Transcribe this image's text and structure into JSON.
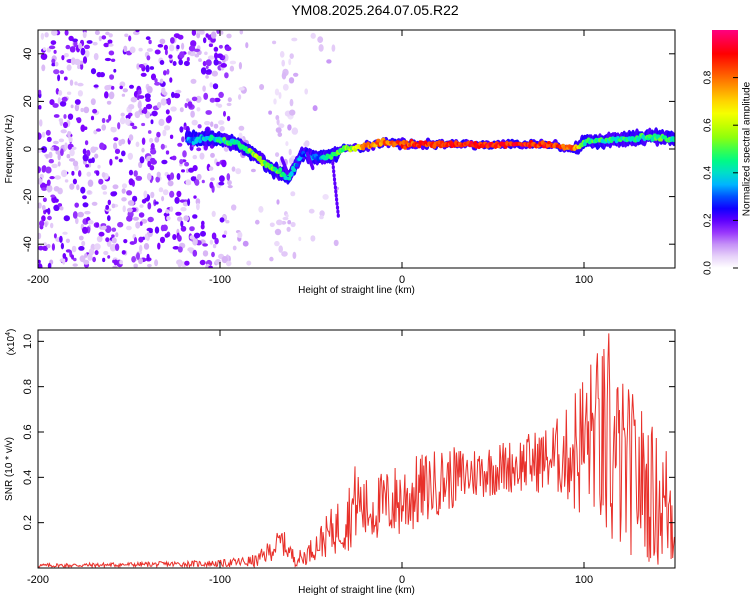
{
  "title": "YM08.2025.264.07.05.R22",
  "chart_data": [
    {
      "type": "heatmap",
      "title": "YM08.2025.264.07.05.R22",
      "xlabel": "Height of straight line (km)",
      "ylabel": "Frequency (Hz)",
      "xlim": [
        -200,
        150
      ],
      "ylim": [
        -50,
        50
      ],
      "xticks": [
        -200,
        -100,
        0,
        100
      ],
      "xtick_labels": [
        "-200",
        "-100",
        "0",
        "100"
      ],
      "yticks": [
        -40,
        -20,
        0,
        20,
        40
      ],
      "ytick_labels": [
        "-40",
        "-20",
        "0",
        "20",
        "40"
      ],
      "colorbar": {
        "label": "Normalized spectral amplitude",
        "range": [
          0,
          1
        ],
        "ticks": [
          0.0,
          0.2,
          0.4,
          0.6,
          0.8
        ],
        "tick_labels": [
          "0.0",
          "0.2",
          "0.4",
          "0.6",
          "0.8"
        ],
        "colors": [
          "#ffffff",
          "#c7a0f0",
          "#7d00ff",
          "#0000ff",
          "#00c8ff",
          "#00ff7a",
          "#a0ff00",
          "#ffff00",
          "#ff8000",
          "#ff0000",
          "#ff0080"
        ]
      },
      "ridge": {
        "description_points_x": [
          -115,
          -100,
          -90,
          -80,
          -72,
          -62,
          -55,
          -45,
          -38,
          -33,
          -20,
          -10,
          0,
          20,
          40,
          60,
          80,
          95,
          100,
          120,
          140,
          150
        ],
        "description_points_y": [
          4,
          4,
          2,
          -3,
          -8,
          -12,
          -2,
          -4,
          -3,
          0,
          1,
          3,
          2,
          2,
          2,
          2,
          2,
          0,
          3,
          4,
          5,
          4
        ],
        "peak_amplitude": [
          0.3,
          0.45,
          0.5,
          0.6,
          0.55,
          0.4,
          0.3,
          0.35,
          0.5,
          0.5,
          0.85,
          0.9,
          0.95,
          1.0,
          1.0,
          1.0,
          1.0,
          0.9,
          0.5,
          0.45,
          0.5,
          0.45
        ]
      }
    },
    {
      "type": "line",
      "xlabel": "Height of straight line (km)",
      "ylabel": "SNR (10 * v/v)",
      "scale_label": "(x10",
      "scale_exponent": "4",
      "scale_close": ")",
      "xlim": [
        -200,
        150
      ],
      "ylim": [
        0,
        1.05
      ],
      "xticks": [
        -200,
        -100,
        0,
        100
      ],
      "xtick_labels": [
        "-200",
        "-100",
        "0",
        "100"
      ],
      "yticks": [
        0.2,
        0.4,
        0.6,
        0.8,
        1.0
      ],
      "ytick_labels": [
        "0.2",
        "0.4",
        "0.6",
        "0.8",
        "1.0"
      ],
      "series": [
        {
          "name": "SNR",
          "color": "#e8302a",
          "envelope_x": [
            -200,
            -150,
            -100,
            -80,
            -72,
            -66,
            -60,
            -55,
            -50,
            -40,
            -30,
            -25,
            -20,
            -10,
            0,
            20,
            40,
            60,
            80,
            90,
            95,
            100,
            105,
            110,
            113,
            120,
            130,
            140,
            150
          ],
          "envelope_mean": [
            0.01,
            0.015,
            0.02,
            0.03,
            0.08,
            0.12,
            0.05,
            0.04,
            0.08,
            0.15,
            0.22,
            0.3,
            0.25,
            0.28,
            0.3,
            0.38,
            0.42,
            0.45,
            0.48,
            0.5,
            0.52,
            0.55,
            0.6,
            0.55,
            0.5,
            0.45,
            0.4,
            0.3,
            0.25
          ],
          "envelope_spread": [
            0.01,
            0.01,
            0.015,
            0.03,
            0.05,
            0.06,
            0.04,
            0.04,
            0.05,
            0.1,
            0.15,
            0.18,
            0.15,
            0.15,
            0.18,
            0.15,
            0.12,
            0.12,
            0.15,
            0.2,
            0.3,
            0.35,
            0.35,
            0.45,
            0.5,
            0.4,
            0.35,
            0.3,
            0.3
          ]
        }
      ]
    }
  ]
}
